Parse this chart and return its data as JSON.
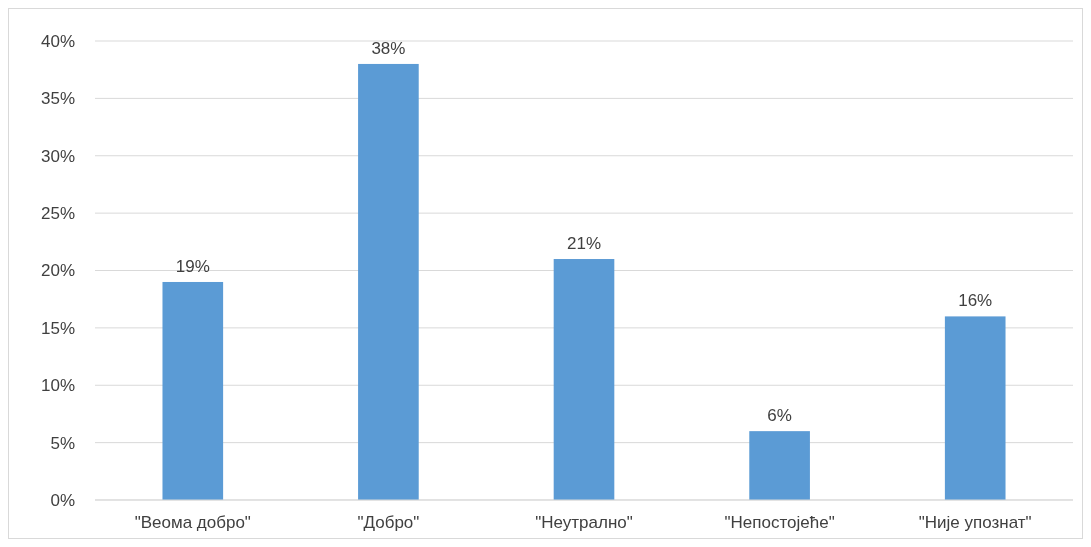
{
  "chart_data": {
    "type": "bar",
    "categories": [
      "\"Веома добро\"",
      "\"Добро\"",
      "\"Неутрално\"",
      "\"Непостојеће\"",
      "\"Није упознат\""
    ],
    "values": [
      19,
      38,
      21,
      6,
      16
    ],
    "value_labels": [
      "19%",
      "38%",
      "21%",
      "6%",
      "16%"
    ],
    "color": "#5b9bd5",
    "ylim": [
      0,
      40
    ],
    "yticks": [
      {
        "value": 0,
        "label": "0%"
      },
      {
        "value": 5,
        "label": "5%"
      },
      {
        "value": 10,
        "label": "10%"
      },
      {
        "value": 15,
        "label": "15%"
      },
      {
        "value": 20,
        "label": "20%"
      },
      {
        "value": 25,
        "label": "25%"
      },
      {
        "value": 30,
        "label": "30%"
      },
      {
        "value": 35,
        "label": "35%"
      },
      {
        "value": 40,
        "label": "40%"
      }
    ],
    "grid": "y"
  }
}
